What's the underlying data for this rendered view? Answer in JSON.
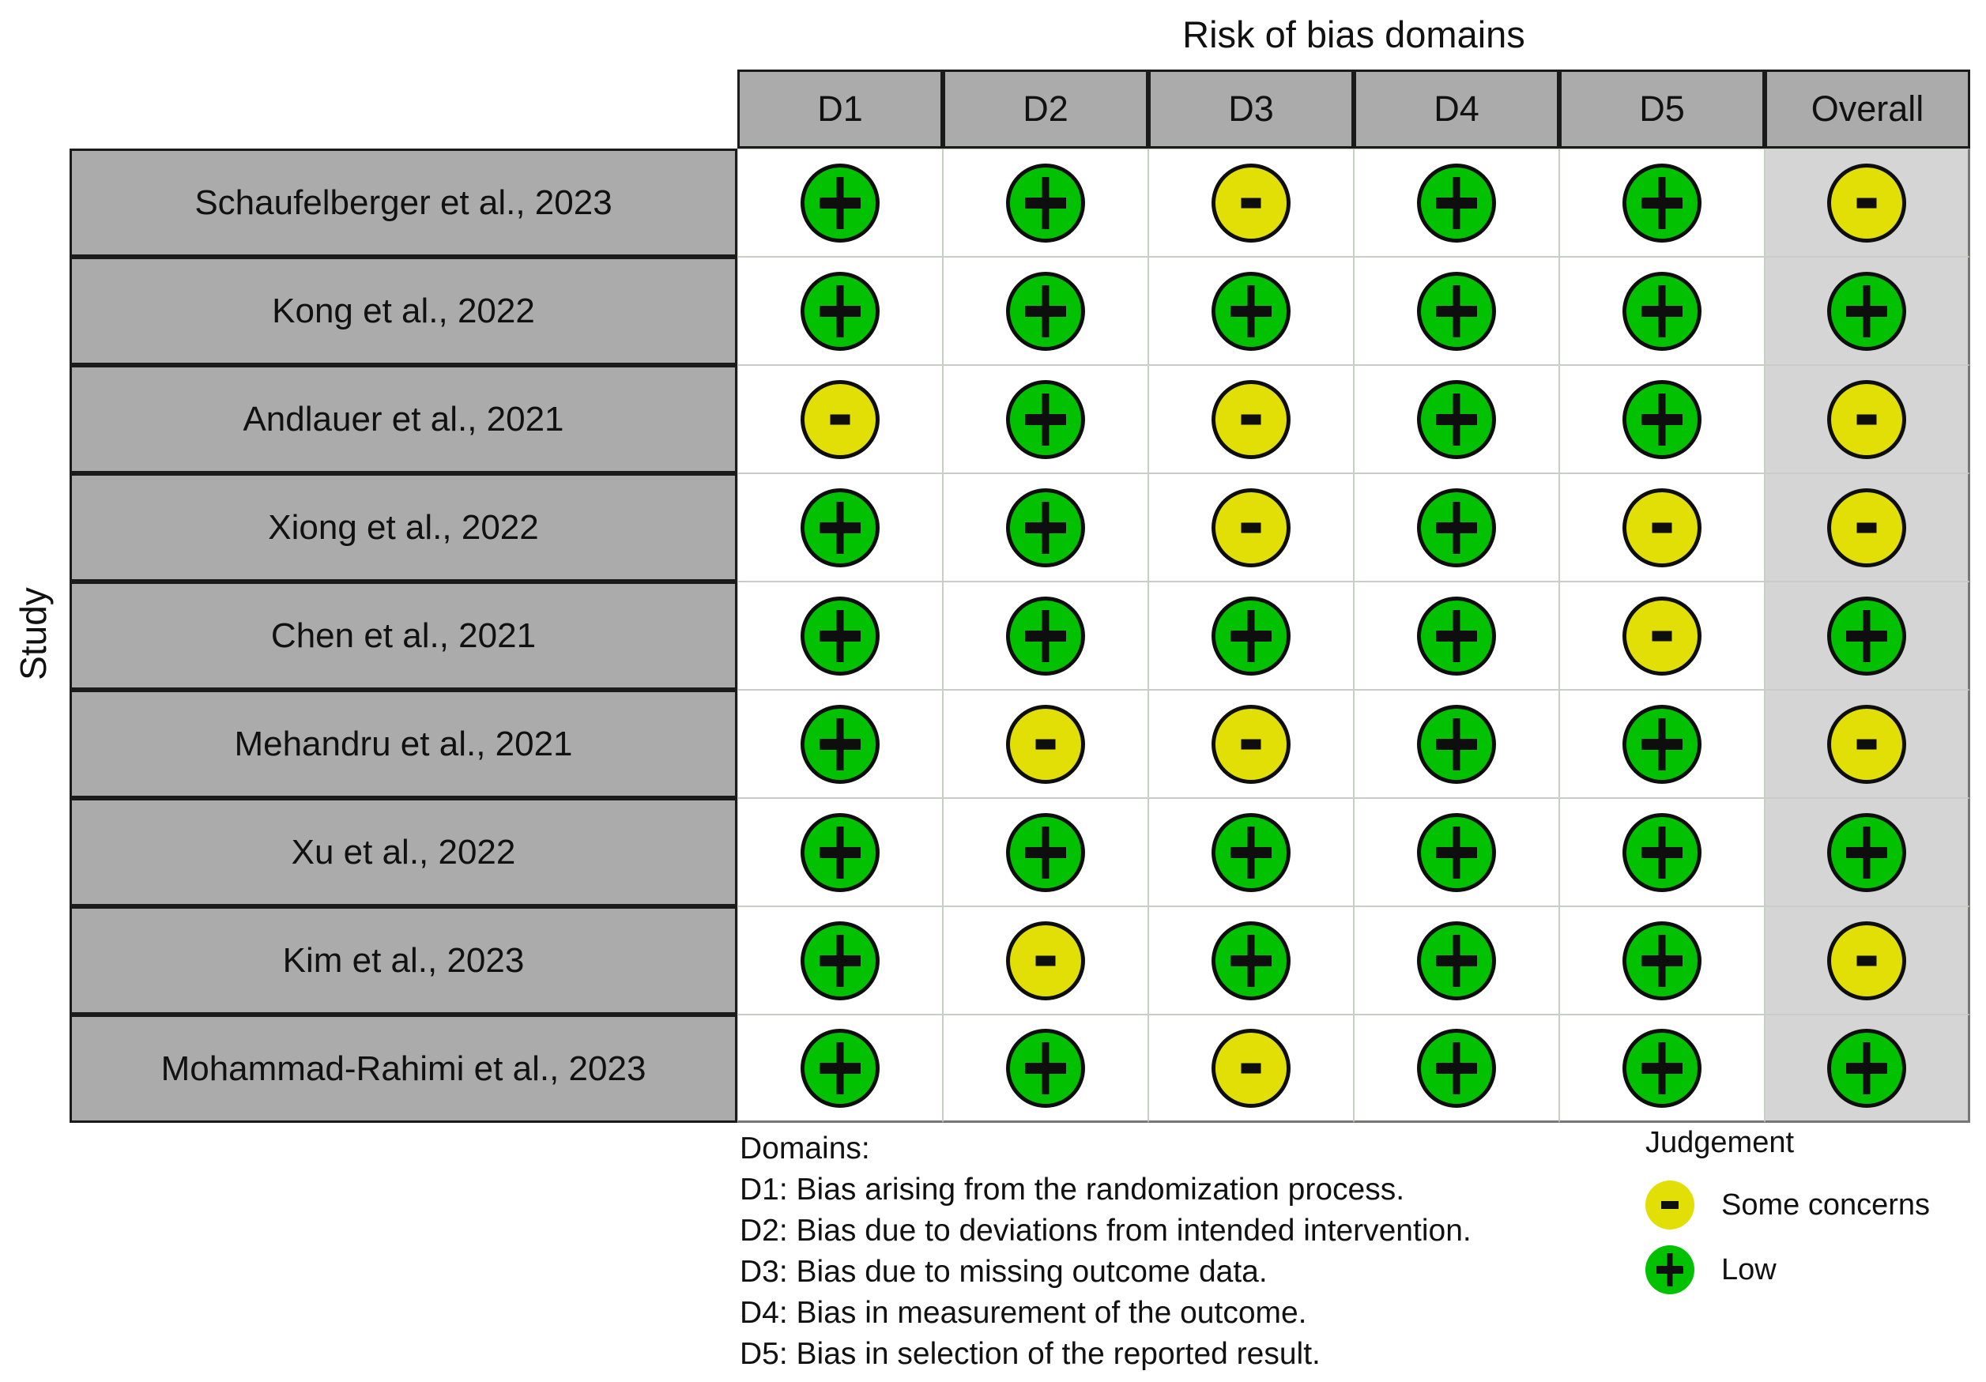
{
  "title": "Risk of bias domains",
  "y_axis_label": "Study",
  "judgement_styles": {
    "Low": {
      "symbol": "plus",
      "color": "#02C100"
    },
    "Some concerns": {
      "symbol": "minus",
      "color": "#E2DF07"
    }
  },
  "legend": {
    "title": "Judgement",
    "items": [
      {
        "judgement": "Some concerns",
        "symbol": "minus",
        "color": "#E2DF07"
      },
      {
        "judgement": "Low",
        "symbol": "plus",
        "color": "#02C100"
      }
    ]
  },
  "footnote": {
    "heading": "Domains:",
    "lines": [
      "D1: Bias arising from the randomization process.",
      "D2: Bias due to deviations from intended intervention.",
      "D3: Bias due to missing outcome data.",
      "D4: Bias in measurement of the outcome.",
      "D5: Bias in selection of the reported result."
    ]
  },
  "colors": {
    "header_cell_bg": "#ABABAB",
    "study_cell_bg": "#ABABAB",
    "overall_cell_bg": "#D5D5D5",
    "panel_bg": "#ffffff",
    "low_risk": "#02C100",
    "some_concerns": "#E2DF07"
  },
  "chart_data": {
    "type": "table",
    "subtype": "risk-of-bias-traffic-light",
    "title": "Risk of bias domains",
    "ylabel": "Study",
    "columns": [
      "D1",
      "D2",
      "D3",
      "D4",
      "D5",
      "Overall"
    ],
    "rows": [
      {
        "study": "Schaufelberger et al., 2023",
        "judgements": [
          "Low",
          "Low",
          "Some concerns",
          "Low",
          "Low",
          "Some concerns"
        ]
      },
      {
        "study": "Kong et al., 2022",
        "judgements": [
          "Low",
          "Low",
          "Low",
          "Low",
          "Low",
          "Low"
        ]
      },
      {
        "study": "Andlauer et al., 2021",
        "judgements": [
          "Some concerns",
          "Low",
          "Some concerns",
          "Low",
          "Low",
          "Some concerns"
        ]
      },
      {
        "study": "Xiong et al., 2022",
        "judgements": [
          "Low",
          "Low",
          "Some concerns",
          "Low",
          "Some concerns",
          "Some concerns"
        ]
      },
      {
        "study": "Chen et al., 2021",
        "judgements": [
          "Low",
          "Low",
          "Low",
          "Low",
          "Some concerns",
          "Low"
        ]
      },
      {
        "study": "Mehandru et al., 2021",
        "judgements": [
          "Low",
          "Some concerns",
          "Some concerns",
          "Low",
          "Low",
          "Some concerns"
        ]
      },
      {
        "study": "Xu et al., 2022",
        "judgements": [
          "Low",
          "Low",
          "Low",
          "Low",
          "Low",
          "Low"
        ]
      },
      {
        "study": "Kim et al., 2023",
        "judgements": [
          "Low",
          "Some concerns",
          "Low",
          "Low",
          "Low",
          "Some concerns"
        ]
      },
      {
        "study": "Mohammad-Rahimi et al., 2023",
        "judgements": [
          "Low",
          "Low",
          "Some concerns",
          "Low",
          "Low",
          "Low"
        ]
      }
    ],
    "legend": {
      "title": "Judgement",
      "entries": [
        "Some concerns",
        "Low"
      ]
    },
    "grid": "on",
    "legend_position": "bottom-right"
  }
}
